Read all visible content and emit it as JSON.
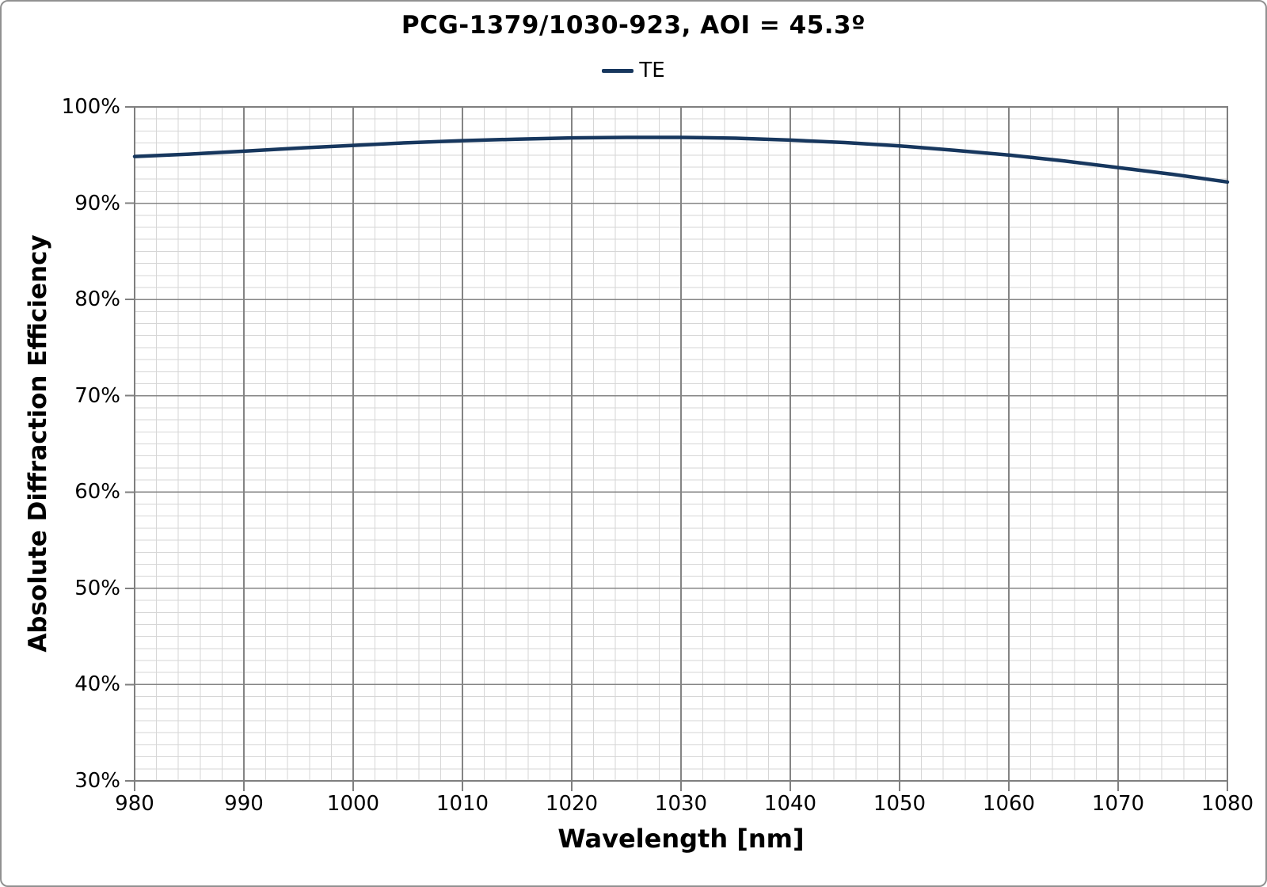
{
  "page": {
    "background": "#ffffff",
    "border_color": "#919191"
  },
  "header": {
    "title": "PCG-1379/1030-923, AOI = 45.3º",
    "legend": [
      {
        "label": "TE",
        "color": "#17375E"
      }
    ]
  },
  "chart_data": {
    "type": "line",
    "title": "PCG-1379/1030-923, AOI = 45.3º",
    "xlabel": "Wavelength [nm]",
    "ylabel": "Absolute Diffraction Efficiency",
    "xlim": [
      980,
      1080
    ],
    "ylim": [
      30,
      100
    ],
    "x_major_ticks": [
      {
        "value": 980,
        "label": "980"
      },
      {
        "value": 990,
        "label": "990"
      },
      {
        "value": 1000,
        "label": "1000"
      },
      {
        "value": 1010,
        "label": "1010"
      },
      {
        "value": 1020,
        "label": "1020"
      },
      {
        "value": 1030,
        "label": "1030"
      },
      {
        "value": 1040,
        "label": "1040"
      },
      {
        "value": 1050,
        "label": "1050"
      },
      {
        "value": 1060,
        "label": "1060"
      },
      {
        "value": 1070,
        "label": "1070"
      },
      {
        "value": 1080,
        "label": "1080"
      }
    ],
    "y_major_ticks": [
      {
        "value": 100,
        "label": "100%"
      },
      {
        "value": 90,
        "label": "90%"
      },
      {
        "value": 80,
        "label": "80%"
      },
      {
        "value": 70,
        "label": "70%"
      },
      {
        "value": 60,
        "label": "60%"
      },
      {
        "value": 50,
        "label": "50%"
      },
      {
        "value": 40,
        "label": "40%"
      },
      {
        "value": 30,
        "label": "30%"
      }
    ],
    "x_minor_step": 2,
    "y_minor_step": 1.25,
    "grid": "major+minor",
    "legend_position": "top-center",
    "colors": {
      "grid_minor": "#D6D6D6",
      "grid_major": "#848484",
      "plot_border": "#7F7F7F",
      "text": "#000000"
    },
    "series": [
      {
        "name": "TE",
        "color": "#17375E",
        "stroke_width": 4.5,
        "x": [
          980,
          985,
          990,
          995,
          1000,
          1005,
          1010,
          1015,
          1020,
          1025,
          1030,
          1035,
          1040,
          1045,
          1050,
          1055,
          1060,
          1065,
          1070,
          1075,
          1080
        ],
        "y": [
          94.85,
          95.1,
          95.4,
          95.72,
          96.0,
          96.28,
          96.5,
          96.65,
          96.78,
          96.83,
          96.83,
          96.75,
          96.55,
          96.3,
          95.95,
          95.5,
          95.0,
          94.4,
          93.7,
          93.0,
          92.2
        ]
      }
    ]
  }
}
